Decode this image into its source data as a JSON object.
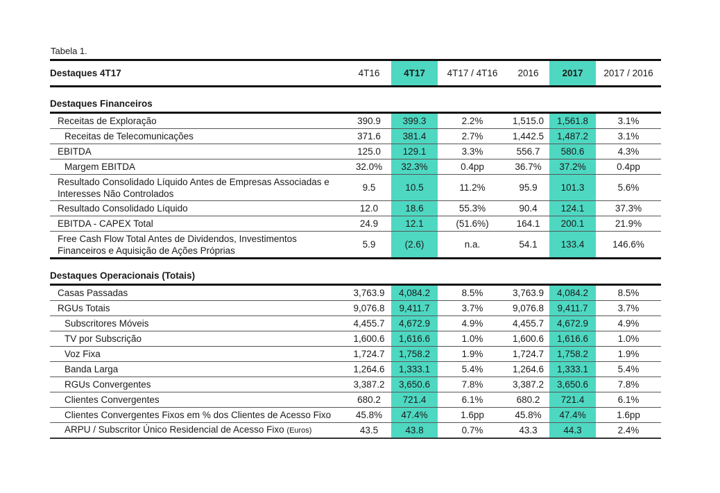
{
  "caption": "Tabela 1.",
  "header": {
    "title": "Destaques 4T17",
    "columns": [
      "4T16",
      "4T17",
      "4T17 / 4T16",
      "2016",
      "2017",
      "2017 / 2016"
    ]
  },
  "highlight_color": "#4ed8c2",
  "sections": [
    {
      "title": "Destaques Financeiros",
      "rows": [
        {
          "label": "Receitas de Exploração",
          "level": 1,
          "values": [
            "390.9",
            "399.3",
            "2.2%",
            "1,515.0",
            "1,561.8",
            "3.1%"
          ]
        },
        {
          "label": "Receitas de Telecomunicações",
          "level": 2,
          "values": [
            "371.6",
            "381.4",
            "2.7%",
            "1,442.5",
            "1,487.2",
            "3.1%"
          ]
        },
        {
          "label": "EBITDA",
          "level": 1,
          "values": [
            "125.0",
            "129.1",
            "3.3%",
            "556.7",
            "580.6",
            "4.3%"
          ]
        },
        {
          "label": "Margem EBITDA",
          "level": 2,
          "values": [
            "32.0%",
            "32.3%",
            "0.4pp",
            "36.7%",
            "37.2%",
            "0.4pp"
          ]
        },
        {
          "label": "Resultado Consolidado Líquido Antes de Empresas Associadas e Interesses Não Controlados",
          "level": 1,
          "two": true,
          "values": [
            "9.5",
            "10.5",
            "11.2%",
            "95.9",
            "101.3",
            "5.6%"
          ]
        },
        {
          "label": "Resultado Consolidado Líquido",
          "level": 1,
          "values": [
            "12.0",
            "18.6",
            "55.3%",
            "90.4",
            "124.1",
            "37.3%"
          ]
        },
        {
          "label": "EBITDA - CAPEX Total",
          "level": 1,
          "values": [
            "24.9",
            "12.1",
            "(51.6%)",
            "164.1",
            "200.1",
            "21.9%"
          ]
        },
        {
          "label": "Free Cash Flow Total Antes de Dividendos, Investimentos Financeiros e Aquisição de Ações Próprias",
          "level": 1,
          "two": true,
          "values": [
            "5.9",
            "(2.6)",
            "n.a.",
            "54.1",
            "133.4",
            "146.6%"
          ]
        }
      ]
    },
    {
      "title": "Destaques Operacionais (Totais)",
      "rows": [
        {
          "label": "Casas Passadas",
          "level": 1,
          "values": [
            "3,763.9",
            "4,084.2",
            "8.5%",
            "3,763.9",
            "4,084.2",
            "8.5%"
          ]
        },
        {
          "label": "RGUs Totais",
          "level": 1,
          "values": [
            "9,076.8",
            "9,411.7",
            "3.7%",
            "9,076.8",
            "9,411.7",
            "3.7%"
          ]
        },
        {
          "label": "Subscritores Móveis",
          "level": 2,
          "values": [
            "4,455.7",
            "4,672.9",
            "4.9%",
            "4,455.7",
            "4,672.9",
            "4.9%"
          ]
        },
        {
          "label": "TV por Subscrição",
          "level": 2,
          "values": [
            "1,600.6",
            "1,616.6",
            "1.0%",
            "1,600.6",
            "1,616.6",
            "1.0%"
          ]
        },
        {
          "label": "Voz Fixa",
          "level": 2,
          "values": [
            "1,724.7",
            "1,758.2",
            "1.9%",
            "1,724.7",
            "1,758.2",
            "1.9%"
          ]
        },
        {
          "label": "Banda Larga",
          "level": 2,
          "values": [
            "1,264.6",
            "1,333.1",
            "5.4%",
            "1,264.6",
            "1,333.1",
            "5.4%"
          ]
        },
        {
          "label": "RGUs Convergentes",
          "level": 2,
          "values": [
            "3,387.2",
            "3,650.6",
            "7.8%",
            "3,387.2",
            "3,650.6",
            "7.8%"
          ]
        },
        {
          "label": "Clientes Convergentes",
          "level": 2,
          "values": [
            "680.2",
            "721.4",
            "6.1%",
            "680.2",
            "721.4",
            "6.1%"
          ]
        },
        {
          "label": "Clientes Convergentes Fixos em % dos Clientes de Acesso Fixo",
          "level": 2,
          "values": [
            "45.8%",
            "47.4%",
            "1.6pp",
            "45.8%",
            "47.4%",
            "1.6pp"
          ]
        },
        {
          "label": "ARPU / Subscritor Único Residencial de Acesso Fixo",
          "unit": "(Euros)",
          "level": 2,
          "values": [
            "43.5",
            "43.8",
            "0.7%",
            "43.3",
            "44.3",
            "2.4%"
          ]
        }
      ]
    }
  ]
}
